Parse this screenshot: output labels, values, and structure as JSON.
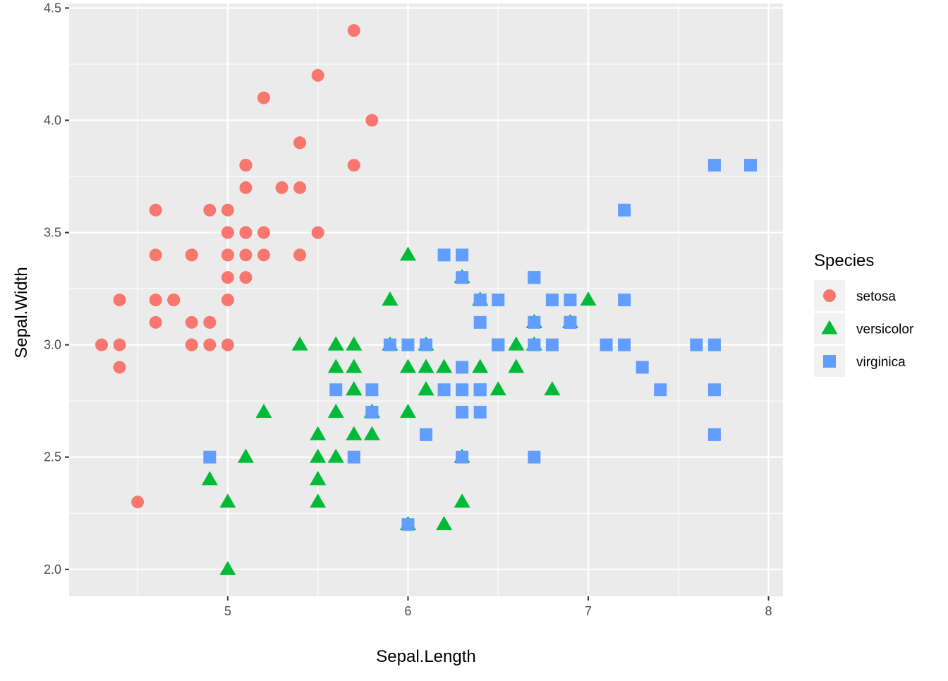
{
  "chart_data": {
    "type": "scatter",
    "xlabel": "Sepal.Length",
    "ylabel": "Sepal.Width",
    "xlim": [
      4.12,
      8.08
    ],
    "ylim": [
      1.88,
      4.52
    ],
    "x_ticks": [
      5,
      6,
      7,
      8
    ],
    "x_tick_labels": [
      "5",
      "6",
      "7",
      "8"
    ],
    "y_ticks": [
      2.0,
      2.5,
      3.0,
      3.5,
      4.0,
      4.5
    ],
    "y_tick_labels": [
      "2.0",
      "2.5",
      "3.0",
      "3.5",
      "4.0",
      "4.5"
    ],
    "grid": true,
    "legend": {
      "title": "Species",
      "position": "right",
      "entries": [
        {
          "label": "setosa",
          "shape": "circle"
        },
        {
          "label": "versicolor",
          "shape": "triangle"
        },
        {
          "label": "virginica",
          "shape": "square"
        }
      ]
    },
    "series": [
      {
        "name": "setosa",
        "shape": "circle",
        "color": "#F8766D",
        "points": [
          [
            5.1,
            3.5
          ],
          [
            4.9,
            3.0
          ],
          [
            4.7,
            3.2
          ],
          [
            4.6,
            3.1
          ],
          [
            5.0,
            3.6
          ],
          [
            5.4,
            3.9
          ],
          [
            4.6,
            3.4
          ],
          [
            5.0,
            3.4
          ],
          [
            4.4,
            2.9
          ],
          [
            4.9,
            3.1
          ],
          [
            5.4,
            3.7
          ],
          [
            4.8,
            3.4
          ],
          [
            4.8,
            3.0
          ],
          [
            4.3,
            3.0
          ],
          [
            5.8,
            4.0
          ],
          [
            5.7,
            4.4
          ],
          [
            5.4,
            3.9
          ],
          [
            5.1,
            3.5
          ],
          [
            5.7,
            3.8
          ],
          [
            5.1,
            3.8
          ],
          [
            5.4,
            3.4
          ],
          [
            5.1,
            3.7
          ],
          [
            4.6,
            3.6
          ],
          [
            5.1,
            3.3
          ],
          [
            4.8,
            3.4
          ],
          [
            5.0,
            3.0
          ],
          [
            5.0,
            3.4
          ],
          [
            5.2,
            3.5
          ],
          [
            5.2,
            3.4
          ],
          [
            4.7,
            3.2
          ],
          [
            4.8,
            3.1
          ],
          [
            5.4,
            3.4
          ],
          [
            5.2,
            4.1
          ],
          [
            5.5,
            4.2
          ],
          [
            4.9,
            3.1
          ],
          [
            5.0,
            3.2
          ],
          [
            5.5,
            3.5
          ],
          [
            4.9,
            3.6
          ],
          [
            4.4,
            3.0
          ],
          [
            5.1,
            3.4
          ],
          [
            5.0,
            3.5
          ],
          [
            4.5,
            2.3
          ],
          [
            4.4,
            3.2
          ],
          [
            5.0,
            3.5
          ],
          [
            5.1,
            3.8
          ],
          [
            4.8,
            3.0
          ],
          [
            5.1,
            3.8
          ],
          [
            4.6,
            3.2
          ],
          [
            5.3,
            3.7
          ],
          [
            5.0,
            3.3
          ]
        ]
      },
      {
        "name": "versicolor",
        "shape": "triangle",
        "color": "#00BA38",
        "points": [
          [
            7.0,
            3.2
          ],
          [
            6.4,
            3.2
          ],
          [
            6.9,
            3.1
          ],
          [
            5.5,
            2.3
          ],
          [
            6.5,
            2.8
          ],
          [
            5.7,
            2.8
          ],
          [
            6.3,
            3.3
          ],
          [
            4.9,
            2.4
          ],
          [
            6.6,
            2.9
          ],
          [
            5.2,
            2.7
          ],
          [
            5.0,
            2.0
          ],
          [
            5.9,
            3.0
          ],
          [
            6.0,
            2.2
          ],
          [
            6.1,
            2.9
          ],
          [
            5.6,
            2.9
          ],
          [
            6.7,
            3.1
          ],
          [
            5.6,
            3.0
          ],
          [
            5.8,
            2.7
          ],
          [
            6.2,
            2.2
          ],
          [
            5.6,
            2.5
          ],
          [
            5.9,
            3.2
          ],
          [
            6.1,
            2.8
          ],
          [
            6.3,
            2.5
          ],
          [
            6.1,
            2.8
          ],
          [
            6.4,
            2.9
          ],
          [
            6.6,
            3.0
          ],
          [
            6.8,
            2.8
          ],
          [
            6.7,
            3.0
          ],
          [
            6.0,
            2.9
          ],
          [
            5.7,
            2.6
          ],
          [
            5.5,
            2.4
          ],
          [
            5.5,
            2.4
          ],
          [
            5.8,
            2.7
          ],
          [
            6.0,
            2.7
          ],
          [
            5.4,
            3.0
          ],
          [
            6.0,
            3.4
          ],
          [
            6.7,
            3.1
          ],
          [
            6.3,
            2.3
          ],
          [
            5.6,
            3.0
          ],
          [
            5.5,
            2.5
          ],
          [
            5.5,
            2.6
          ],
          [
            6.1,
            3.0
          ],
          [
            5.8,
            2.6
          ],
          [
            5.0,
            2.3
          ],
          [
            5.6,
            2.7
          ],
          [
            5.7,
            3.0
          ],
          [
            5.7,
            2.9
          ],
          [
            6.2,
            2.9
          ],
          [
            5.1,
            2.5
          ],
          [
            5.7,
            2.8
          ]
        ]
      },
      {
        "name": "virginica",
        "shape": "square",
        "color": "#619CFF",
        "points": [
          [
            6.3,
            3.3
          ],
          [
            5.8,
            2.7
          ],
          [
            7.1,
            3.0
          ],
          [
            6.3,
            2.9
          ],
          [
            6.5,
            3.0
          ],
          [
            7.6,
            3.0
          ],
          [
            4.9,
            2.5
          ],
          [
            7.3,
            2.9
          ],
          [
            6.7,
            2.5
          ],
          [
            7.2,
            3.6
          ],
          [
            6.5,
            3.2
          ],
          [
            6.4,
            2.7
          ],
          [
            6.8,
            3.0
          ],
          [
            5.7,
            2.5
          ],
          [
            5.8,
            2.8
          ],
          [
            6.4,
            3.2
          ],
          [
            6.5,
            3.0
          ],
          [
            7.7,
            3.8
          ],
          [
            7.7,
            2.6
          ],
          [
            6.0,
            2.2
          ],
          [
            6.9,
            3.2
          ],
          [
            5.6,
            2.8
          ],
          [
            7.7,
            2.8
          ],
          [
            6.3,
            2.7
          ],
          [
            6.7,
            3.3
          ],
          [
            7.2,
            3.2
          ],
          [
            6.2,
            2.8
          ],
          [
            6.1,
            3.0
          ],
          [
            6.4,
            2.8
          ],
          [
            7.2,
            3.0
          ],
          [
            7.4,
            2.8
          ],
          [
            7.9,
            3.8
          ],
          [
            6.4,
            2.8
          ],
          [
            6.3,
            2.8
          ],
          [
            6.1,
            2.6
          ],
          [
            7.7,
            3.0
          ],
          [
            6.3,
            3.4
          ],
          [
            6.4,
            3.1
          ],
          [
            6.0,
            3.0
          ],
          [
            6.9,
            3.1
          ],
          [
            6.7,
            3.1
          ],
          [
            6.9,
            3.1
          ],
          [
            5.8,
            2.7
          ],
          [
            6.8,
            3.2
          ],
          [
            6.7,
            3.3
          ],
          [
            6.7,
            3.0
          ],
          [
            6.3,
            2.5
          ],
          [
            6.5,
            3.0
          ],
          [
            6.2,
            3.4
          ],
          [
            5.9,
            3.0
          ]
        ]
      }
    ]
  }
}
